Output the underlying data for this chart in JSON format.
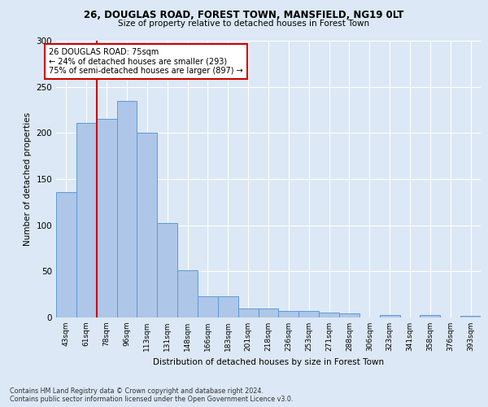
{
  "title1": "26, DOUGLAS ROAD, FOREST TOWN, MANSFIELD, NG19 0LT",
  "title2": "Size of property relative to detached houses in Forest Town",
  "xlabel": "Distribution of detached houses by size in Forest Town",
  "ylabel": "Number of detached properties",
  "bin_labels": [
    "43sqm",
    "61sqm",
    "78sqm",
    "96sqm",
    "113sqm",
    "131sqm",
    "148sqm",
    "166sqm",
    "183sqm",
    "201sqm",
    "218sqm",
    "236sqm",
    "253sqm",
    "271sqm",
    "288sqm",
    "306sqm",
    "323sqm",
    "341sqm",
    "358sqm",
    "376sqm",
    "393sqm"
  ],
  "bar_values": [
    136,
    211,
    215,
    235,
    200,
    102,
    51,
    23,
    23,
    10,
    10,
    7,
    7,
    5,
    4,
    0,
    3,
    0,
    3,
    0,
    2
  ],
  "bar_color": "#aec6e8",
  "bar_edge_color": "#5b9bd5",
  "vline_x_index": 2,
  "vline_color": "#cc0000",
  "annotation_text": "26 DOUGLAS ROAD: 75sqm\n← 24% of detached houses are smaller (293)\n75% of semi-detached houses are larger (897) →",
  "annotation_box_color": "#ffffff",
  "annotation_box_edge": "#cc0000",
  "footnote": "Contains HM Land Registry data © Crown copyright and database right 2024.\nContains public sector information licensed under the Open Government Licence v3.0.",
  "ylim": [
    0,
    300
  ],
  "background_color": "#dce8f5",
  "grid_color": "#ffffff"
}
